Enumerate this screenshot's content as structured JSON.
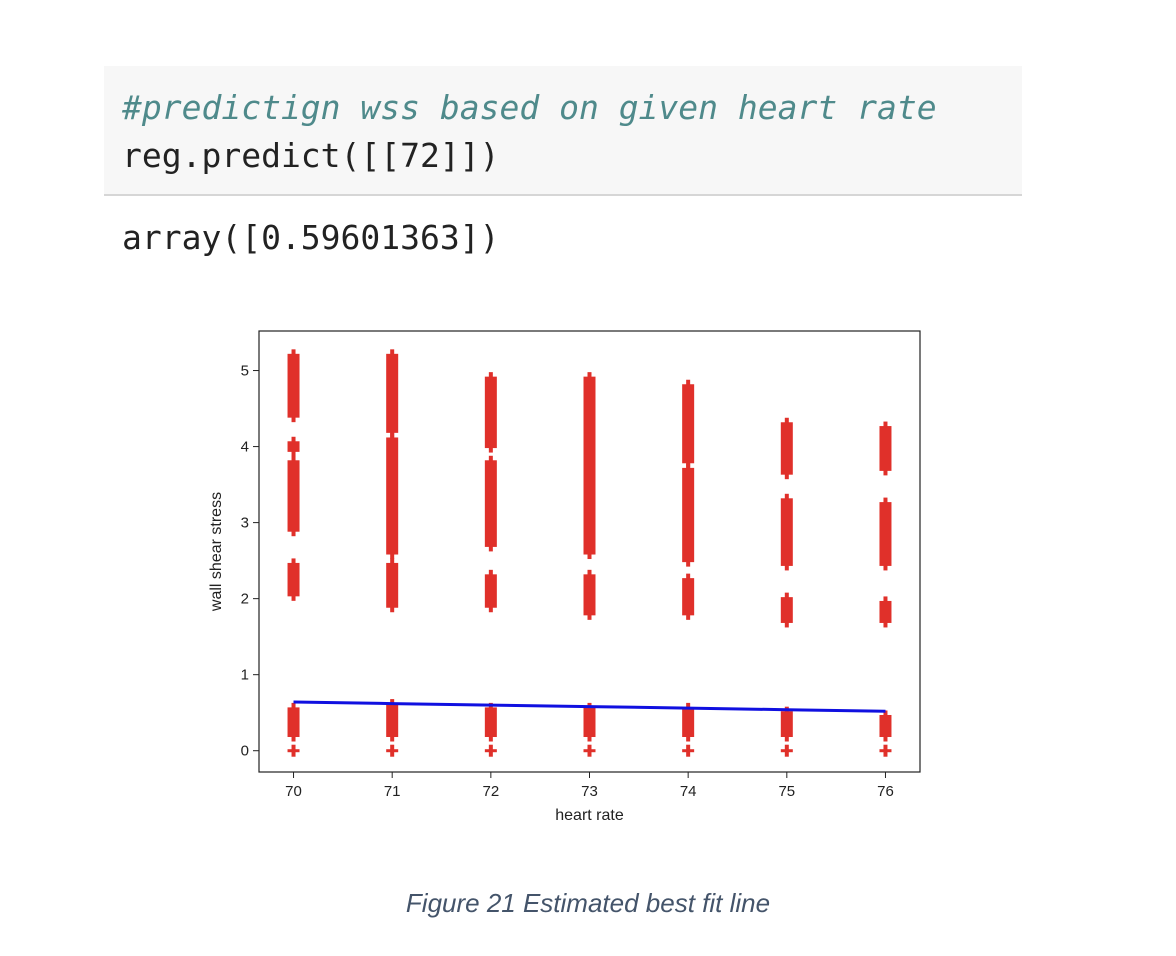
{
  "code_cell": {
    "comment": "#predictign wss based on given heart rate",
    "code": "reg.predict([[72]])"
  },
  "output": {
    "text": "array([0.59601363])"
  },
  "caption": "Figure 21 Estimated best fit line",
  "chart_data": {
    "type": "scatter",
    "xlabel": "heart rate",
    "ylabel": "wall shear stress",
    "xlim": [
      69.65,
      76.35
    ],
    "ylim": [
      -0.28,
      5.52
    ],
    "x_ticks": [
      70,
      71,
      72,
      73,
      74,
      75,
      76
    ],
    "y_ticks": [
      0,
      1,
      2,
      3,
      4,
      5
    ],
    "colors": {
      "points": "#e0302a",
      "fit_line": "#1010e0"
    },
    "series": [
      {
        "marker": "plus",
        "clusters": [
          {
            "x": 70,
            "ranges": [
              [
                0,
                0
              ],
              [
                0.2,
                0.55
              ],
              [
                2.05,
                2.45
              ],
              [
                2.9,
                3.8
              ],
              [
                3.95,
                4.05
              ],
              [
                4.4,
                5.2
              ]
            ]
          },
          {
            "x": 71,
            "ranges": [
              [
                0,
                0
              ],
              [
                0.2,
                0.6
              ],
              [
                1.9,
                2.45
              ],
              [
                2.6,
                4.1
              ],
              [
                4.2,
                5.2
              ]
            ]
          },
          {
            "x": 72,
            "ranges": [
              [
                0,
                0
              ],
              [
                0.2,
                0.55
              ],
              [
                1.9,
                2.3
              ],
              [
                2.7,
                3.8
              ],
              [
                4.0,
                4.9
              ]
            ]
          },
          {
            "x": 73,
            "ranges": [
              [
                0,
                0
              ],
              [
                0.2,
                0.55
              ],
              [
                1.8,
                2.3
              ],
              [
                2.6,
                4.9
              ]
            ]
          },
          {
            "x": 74,
            "ranges": [
              [
                0,
                0
              ],
              [
                0.2,
                0.55
              ],
              [
                1.8,
                2.25
              ],
              [
                2.5,
                3.7
              ],
              [
                3.8,
                4.8
              ]
            ]
          },
          {
            "x": 75,
            "ranges": [
              [
                0,
                0
              ],
              [
                0.2,
                0.5
              ],
              [
                1.7,
                2.0
              ],
              [
                2.45,
                3.3
              ],
              [
                3.65,
                4.3
              ]
            ]
          },
          {
            "x": 76,
            "ranges": [
              [
                0,
                0
              ],
              [
                0.2,
                0.45
              ],
              [
                1.7,
                1.95
              ],
              [
                2.45,
                3.25
              ],
              [
                3.7,
                4.25
              ]
            ]
          }
        ]
      },
      {
        "marker": "line",
        "x": [
          70,
          71,
          72,
          73,
          74,
          75,
          76
        ],
        "y": [
          0.64,
          0.62,
          0.6,
          0.58,
          0.56,
          0.54,
          0.52
        ]
      }
    ]
  }
}
